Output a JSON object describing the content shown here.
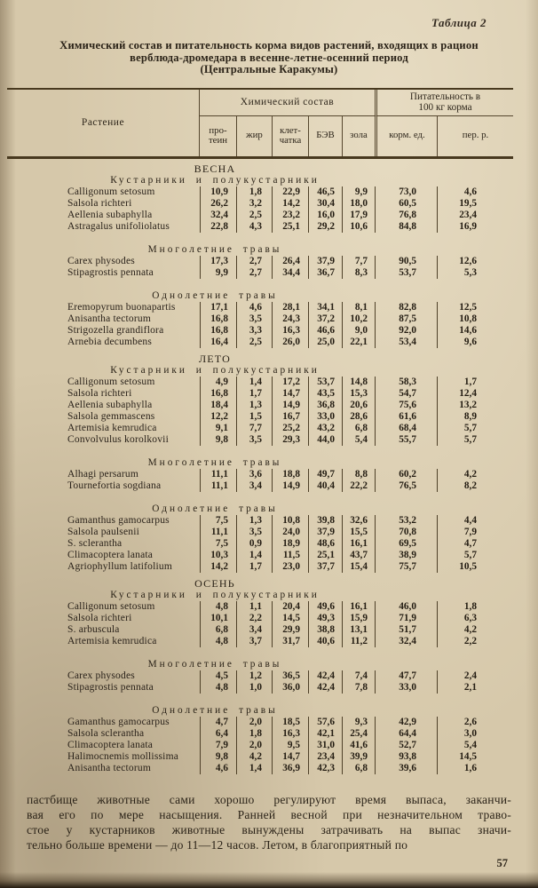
{
  "page": {
    "table_label": "Таблица 2",
    "title_line1": "Химический состав и питательность корма видов растений, входящих в рацион",
    "title_line2": "верблюда-дромедара в весенне-летне-осенний период",
    "title_line3": "(Центральные Каракумы)",
    "page_number": "57"
  },
  "table": {
    "col_plant": "Растение",
    "group_chem": "Химический состав",
    "group_nutrition": "Питательность в\n100 кг корма",
    "columns": [
      "про-\nтеин",
      "жир",
      "клет-\nчатка",
      "БЭВ",
      "зола",
      "корм. ед.",
      "пер.  р."
    ],
    "sections": [
      {
        "season": "ВЕСНА",
        "groups": [
          {
            "heading": "Кустарники и полукустарники",
            "rows": [
              {
                "plant": "Calligonum setosum",
                "values": [
                  "10,9",
                  "1,8",
                  "22,9",
                  "46,5",
                  "9,9",
                  "73,0",
                  "4,6"
                ]
              },
              {
                "plant": "Salsola richteri",
                "values": [
                  "26,2",
                  "3,2",
                  "14,2",
                  "30,4",
                  "18,0",
                  "60,5",
                  "19,5"
                ]
              },
              {
                "plant": "Aellenia subaphylla",
                "values": [
                  "32,4",
                  "2,5",
                  "23,2",
                  "16,0",
                  "17,9",
                  "76,8",
                  "23,4"
                ]
              },
              {
                "plant": "Astragalus unifoliolatus",
                "values": [
                  "22,8",
                  "4,3",
                  "25,1",
                  "29,2",
                  "10,6",
                  "84,8",
                  "16,9"
                ]
              }
            ]
          },
          {
            "heading": "Многолетние травы",
            "rows": [
              {
                "plant": "Carex physodes",
                "values": [
                  "17,3",
                  "2,7",
                  "26,4",
                  "37,9",
                  "7,7",
                  "90,5",
                  "12,6"
                ]
              },
              {
                "plant": "Stipagrostis pennata",
                "values": [
                  "9,9",
                  "2,7",
                  "34,4",
                  "36,7",
                  "8,3",
                  "53,7",
                  "5,3"
                ]
              }
            ]
          },
          {
            "heading": "Однолетние травы",
            "rows": [
              {
                "plant": "Eremopyrum buonapartis",
                "values": [
                  "17,1",
                  "4,6",
                  "28,1",
                  "34,1",
                  "8,1",
                  "82,8",
                  "12,5"
                ]
              },
              {
                "plant": "Anisantha tectorum",
                "values": [
                  "16,8",
                  "3,5",
                  "24,3",
                  "37,2",
                  "10,2",
                  "87,5",
                  "10,8"
                ]
              },
              {
                "plant": "Strigozella grandiflora",
                "values": [
                  "16,8",
                  "3,3",
                  "16,3",
                  "46,6",
                  "9,0",
                  "92,0",
                  "14,6"
                ]
              },
              {
                "plant": "Arnebia decumbens",
                "values": [
                  "16,4",
                  "2,5",
                  "26,0",
                  "25,0",
                  "22,1",
                  "53,4",
                  "9,6"
                ]
              }
            ]
          }
        ]
      },
      {
        "season": "ЛЕТО",
        "groups": [
          {
            "heading": "Кустарники и полукустарники",
            "rows": [
              {
                "plant": "Calligonum setosum",
                "values": [
                  "4,9",
                  "1,4",
                  "17,2",
                  "53,7",
                  "14,8",
                  "58,3",
                  "1,7"
                ]
              },
              {
                "plant": "Salsola richteri",
                "values": [
                  "16,8",
                  "1,7",
                  "14,7",
                  "43,5",
                  "15,3",
                  "54,7",
                  "12,4"
                ]
              },
              {
                "plant": "Aellenia subaphylla",
                "values": [
                  "18,4",
                  "1,3",
                  "14,9",
                  "36,8",
                  "20,6",
                  "75,6",
                  "13,2"
                ]
              },
              {
                "plant": "Salsola gemmascens",
                "values": [
                  "12,2",
                  "1,5",
                  "16,7",
                  "33,0",
                  "28,6",
                  "61,6",
                  "8,9"
                ]
              },
              {
                "plant": "Artemisia kemrudica",
                "values": [
                  "9,1",
                  "7,7",
                  "25,2",
                  "43,2",
                  "6,8",
                  "68,4",
                  "5,7"
                ]
              },
              {
                "plant": "Convolvulus korolkovii",
                "values": [
                  "9,8",
                  "3,5",
                  "29,3",
                  "44,0",
                  "5,4",
                  "55,7",
                  "5,7"
                ]
              }
            ]
          },
          {
            "heading": "Многолетние травы",
            "rows": [
              {
                "plant": "Alhagi persarum",
                "values": [
                  "11,1",
                  "3,6",
                  "18,8",
                  "49,7",
                  "8,8",
                  "60,2",
                  "4,2"
                ]
              },
              {
                "plant": "Tournefortia sogdiana",
                "values": [
                  "11,1",
                  "3,4",
                  "14,9",
                  "40,4",
                  "22,2",
                  "76,5",
                  "8,2"
                ]
              }
            ]
          },
          {
            "heading": "Однолетние травы",
            "rows": [
              {
                "plant": "Gamanthus gamocarpus",
                "values": [
                  "7,5",
                  "1,3",
                  "10,8",
                  "39,8",
                  "32,6",
                  "53,2",
                  "4,4"
                ]
              },
              {
                "plant": "Salsola paulsenii",
                "values": [
                  "11,1",
                  "3,5",
                  "24,0",
                  "37,9",
                  "15,5",
                  "70,8",
                  "7,9"
                ]
              },
              {
                "plant": "S. sclerantha",
                "values": [
                  "7,5",
                  "0,9",
                  "18,9",
                  "48,6",
                  "16,1",
                  "69,5",
                  "4,7"
                ]
              },
              {
                "plant": "Climacoptera lanata",
                "values": [
                  "10,3",
                  "1,4",
                  "11,5",
                  "25,1",
                  "43,7",
                  "38,9",
                  "5,7"
                ]
              },
              {
                "plant": "Agriophyllum latifolium",
                "values": [
                  "14,2",
                  "1,7",
                  "23,0",
                  "37,7",
                  "15,4",
                  "75,7",
                  "10,5"
                ]
              }
            ]
          }
        ]
      },
      {
        "season": "ОСЕНЬ",
        "groups": [
          {
            "heading": "Кустарники и полукустарники",
            "rows": [
              {
                "plant": "Calligonum setosum",
                "values": [
                  "4,8",
                  "1,1",
                  "20,4",
                  "49,6",
                  "16,1",
                  "46,0",
                  "1,8"
                ]
              },
              {
                "plant": "Salsola richteri",
                "values": [
                  "10,1",
                  "2,2",
                  "14,5",
                  "49,3",
                  "15,9",
                  "71,9",
                  "6,3"
                ]
              },
              {
                "plant": "S. arbuscula",
                "values": [
                  "6,8",
                  "3,4",
                  "29,9",
                  "38,8",
                  "13,1",
                  "51,7",
                  "4,2"
                ]
              },
              {
                "plant": "Artemisia kemrudica",
                "values": [
                  "4,8",
                  "3,7",
                  "31,7",
                  "40,6",
                  "11,2",
                  "32,4",
                  "2,2"
                ]
              }
            ]
          },
          {
            "heading": "Многолетние травы",
            "rows": [
              {
                "plant": "Carex physodes",
                "values": [
                  "4,5",
                  "1,2",
                  "36,5",
                  "42,4",
                  "7,4",
                  "47,7",
                  "2,4"
                ]
              },
              {
                "plant": "Stipagrostis pennata",
                "values": [
                  "4,8",
                  "1,0",
                  "36,0",
                  "42,4",
                  "7,8",
                  "33,0",
                  "2,1"
                ]
              }
            ]
          },
          {
            "heading": "Однолетние травы",
            "rows": [
              {
                "plant": "Gamanthus gamocarpus",
                "values": [
                  "4,7",
                  "2,0",
                  "18,5",
                  "57,6",
                  "9,3",
                  "42,9",
                  "2,6"
                ]
              },
              {
                "plant": "Salsola sclerantha",
                "values": [
                  "6,4",
                  "1,8",
                  "16,3",
                  "42,1",
                  "25,4",
                  "64,4",
                  "3,0"
                ]
              },
              {
                "plant": "Climacoptera lanata",
                "values": [
                  "7,9",
                  "2,0",
                  "9,5",
                  "31,0",
                  "41,6",
                  "52,7",
                  "5,4"
                ]
              },
              {
                "plant": "Halimocnemis mollissima",
                "values": [
                  "9,8",
                  "4,2",
                  "14,7",
                  "23,4",
                  "39,9",
                  "93,8",
                  "14,5"
                ]
              },
              {
                "plant": "Anisantha tectorum",
                "values": [
                  "4,6",
                  "1,4",
                  "36,9",
                  "42,3",
                  "6,8",
                  "39,6",
                  "1,6"
                ]
              }
            ]
          }
        ]
      }
    ]
  },
  "footer": {
    "lines": [
      "пастбище животные сами хорошо регулируют время выпаса, заканчи-",
      "вая его по мере насыщения. Ранней весной при незначительном траво-",
      "стое у кустарников животные вынуждены затрачивать на выпас значи-",
      "тельно больше времени — до 11—12 часов. Летом, в благоприятный по"
    ]
  },
  "colors": {
    "paper": "#d6c8aa",
    "ink": "#2b2318",
    "rule": "#48391f"
  }
}
